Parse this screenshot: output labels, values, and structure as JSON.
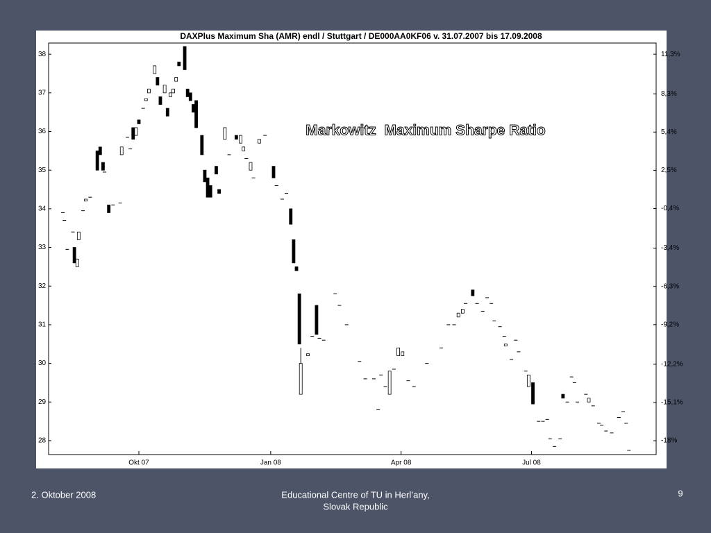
{
  "chart_data": {
    "type": "candlestick",
    "title": "DAXPlus Maximum Sha (AMR) endl / Stuttgart / DE000AA0KF06 v. 31.07.2007 bis 17.09.2008",
    "annotation": "Markowitz  Maximum Sharpe Ratio",
    "up_color": "#ffffff",
    "down_color": "#000000",
    "xlim": [
      -1,
      423
    ],
    "xticks": [
      {
        "value": 62,
        "label": "Okt 07"
      },
      {
        "value": 154,
        "label": "Jan 08"
      },
      {
        "value": 245,
        "label": "Apr 08"
      },
      {
        "value": 336,
        "label": "Jul 08"
      }
    ],
    "ylim": [
      27.64,
      38.29
    ],
    "yticks": [
      28,
      29,
      30,
      31,
      32,
      33,
      34,
      35,
      36,
      37,
      38
    ],
    "y2lim": [
      -19.05,
      12.15
    ],
    "y2ticks": [
      {
        "value": -18,
        "label": "-18%"
      },
      {
        "value": -15.1,
        "label": "-15,1%"
      },
      {
        "value": -12.2,
        "label": "-12,2%"
      },
      {
        "value": -9.2,
        "label": "-9,2%"
      },
      {
        "value": -6.3,
        "label": "-6,3%"
      },
      {
        "value": -3.4,
        "label": "-3,4%"
      },
      {
        "value": -0.4,
        "label": "-0,4%"
      },
      {
        "value": 2.5,
        "label": "2,5%"
      },
      {
        "value": 5.4,
        "label": "5,4%"
      },
      {
        "value": 8.3,
        "label": "8,3%"
      },
      {
        "value": 11.3,
        "label": "11,3%"
      }
    ],
    "x": [
      9,
      10,
      12,
      16,
      17,
      19,
      20,
      23,
      25,
      28,
      33,
      35,
      37,
      38,
      41,
      44,
      49,
      50,
      54,
      56,
      58,
      60,
      62,
      65,
      67,
      69,
      73,
      75,
      77,
      80,
      82,
      84,
      86,
      88,
      90,
      94,
      96,
      98,
      100,
      102,
      106,
      108,
      110,
      112,
      116,
      118,
      122,
      125,
      130,
      133,
      135,
      137,
      140,
      142,
      146,
      150,
      156,
      158,
      162,
      165,
      168,
      170,
      172,
      174,
      175,
      180,
      183,
      186,
      188,
      191,
      199,
      202,
      207,
      216,
      220,
      226,
      229,
      231,
      234,
      237,
      240,
      243,
      246,
      250,
      254,
      263,
      273,
      278,
      282,
      285,
      288,
      290,
      295,
      298,
      302,
      305,
      308,
      310,
      314,
      317,
      318,
      322,
      325,
      327,
      332,
      334,
      337,
      341,
      344,
      347,
      349,
      352,
      356,
      358,
      361,
      364,
      366,
      368,
      374,
      376,
      379,
      383,
      385,
      388,
      392,
      397,
      400,
      402,
      404
    ],
    "ohlc": [
      [
        33.9,
        33.9,
        33.9,
        33.9
      ],
      [
        33.7,
        33.7,
        33.7,
        33.7
      ],
      [
        32.95,
        32.95,
        32.95,
        32.95
      ],
      [
        33.4,
        33.4,
        33.4,
        33.4
      ],
      [
        33.0,
        33.0,
        32.6,
        32.6
      ],
      [
        32.5,
        32.7,
        32.5,
        32.7
      ],
      [
        33.2,
        33.4,
        33.2,
        33.4
      ],
      [
        33.95,
        33.95,
        33.95,
        33.95
      ],
      [
        34.2,
        34.25,
        34.2,
        34.25
      ],
      [
        34.3,
        34.3,
        34.3,
        34.3
      ],
      [
        35.5,
        35.5,
        35.0,
        35.0
      ],
      [
        35.6,
        35.6,
        35.4,
        35.4
      ],
      [
        35.2,
        35.2,
        35.0,
        35.0
      ],
      [
        34.95,
        34.95,
        34.95,
        34.95
      ],
      [
        34.1,
        34.1,
        33.9,
        33.9
      ],
      [
        34.1,
        34.1,
        34.1,
        34.1
      ],
      [
        34.15,
        34.15,
        34.15,
        34.15
      ],
      [
        35.4,
        35.6,
        35.4,
        35.6
      ],
      [
        35.85,
        35.85,
        35.85,
        35.85
      ],
      [
        35.55,
        35.55,
        35.55,
        35.55
      ],
      [
        36.1,
        36.1,
        35.8,
        35.8
      ],
      [
        35.9,
        36.1,
        35.9,
        36.1
      ],
      [
        36.3,
        36.3,
        36.2,
        36.2
      ],
      [
        36.6,
        36.6,
        36.6,
        36.6
      ],
      [
        36.8,
        36.85,
        36.8,
        36.85
      ],
      [
        37.0,
        37.1,
        37.0,
        37.1
      ],
      [
        37.5,
        37.7,
        37.5,
        37.7
      ],
      [
        37.4,
        37.4,
        37.2,
        37.2
      ],
      [
        36.9,
        36.9,
        36.7,
        36.7
      ],
      [
        37.0,
        37.2,
        37.0,
        37.2
      ],
      [
        36.6,
        36.6,
        36.4,
        36.4
      ],
      [
        36.9,
        37.0,
        36.9,
        37.0
      ],
      [
        37.0,
        37.1,
        37.0,
        37.1
      ],
      [
        37.3,
        37.4,
        37.3,
        37.4
      ],
      [
        37.8,
        37.8,
        37.7,
        37.7
      ],
      [
        38.2,
        38.2,
        37.6,
        37.6
      ],
      [
        37.1,
        37.1,
        36.9,
        36.9
      ],
      [
        37.0,
        37.0,
        36.8,
        36.8
      ],
      [
        36.7,
        36.7,
        36.5,
        36.5
      ],
      [
        36.8,
        36.8,
        36.1,
        36.1
      ],
      [
        35.9,
        35.9,
        35.4,
        35.4
      ],
      [
        35.0,
        35.0,
        34.7,
        34.7
      ],
      [
        34.8,
        34.8,
        34.3,
        34.3
      ],
      [
        34.6,
        34.6,
        34.3,
        34.3
      ],
      [
        35.1,
        35.1,
        34.9,
        34.9
      ],
      [
        34.5,
        34.5,
        34.4,
        34.4
      ],
      [
        35.8,
        36.1,
        35.8,
        36.1
      ],
      [
        35.4,
        35.4,
        35.4,
        35.4
      ],
      [
        35.9,
        35.9,
        35.8,
        35.8
      ],
      [
        35.7,
        35.9,
        35.7,
        35.9
      ],
      [
        35.5,
        35.6,
        35.5,
        35.6
      ],
      [
        35.3,
        35.3,
        35.3,
        35.3
      ],
      [
        35.0,
        35.2,
        35.0,
        35.2
      ],
      [
        34.8,
        34.8,
        34.8,
        34.8
      ],
      [
        35.7,
        35.8,
        35.7,
        35.8
      ],
      [
        35.9,
        35.9,
        35.9,
        35.9
      ],
      [
        35.1,
        35.1,
        34.8,
        34.8
      ],
      [
        34.6,
        34.6,
        34.6,
        34.6
      ],
      [
        34.25,
        34.25,
        34.25,
        34.25
      ],
      [
        34.4,
        34.4,
        34.4,
        34.4
      ],
      [
        34.0,
        34.0,
        33.6,
        33.6
      ],
      [
        33.2,
        33.2,
        32.6,
        32.6
      ],
      [
        32.5,
        32.5,
        32.4,
        32.4
      ],
      [
        31.8,
        31.8,
        30.5,
        30.5
      ],
      [
        29.2,
        30.4,
        29.2,
        30.0
      ],
      [
        30.2,
        30.25,
        30.2,
        30.25
      ],
      [
        30.7,
        30.7,
        30.7,
        30.7
      ],
      [
        31.5,
        31.5,
        30.75,
        30.75
      ],
      [
        30.65,
        30.65,
        30.65,
        30.65
      ],
      [
        30.6,
        30.6,
        30.6,
        30.6
      ],
      [
        31.8,
        31.8,
        31.8,
        31.8
      ],
      [
        31.5,
        31.5,
        31.5,
        31.5
      ],
      [
        31.0,
        31.0,
        31.0,
        31.0
      ],
      [
        30.05,
        30.05,
        30.05,
        30.05
      ],
      [
        29.6,
        29.6,
        29.6,
        29.6
      ],
      [
        29.6,
        29.6,
        29.6,
        29.6
      ],
      [
        28.8,
        28.8,
        28.8,
        28.8
      ],
      [
        29.7,
        29.7,
        29.7,
        29.7
      ],
      [
        29.4,
        29.4,
        29.4,
        29.4
      ],
      [
        29.2,
        29.8,
        29.2,
        29.8
      ],
      [
        29.85,
        29.85,
        29.85,
        29.85
      ],
      [
        30.2,
        30.4,
        30.2,
        30.4
      ],
      [
        30.2,
        30.3,
        30.2,
        30.3
      ],
      [
        29.55,
        29.55,
        29.55,
        29.55
      ],
      [
        29.4,
        29.4,
        29.4,
        29.4
      ],
      [
        30.0,
        30.0,
        30.0,
        30.0
      ],
      [
        30.4,
        30.4,
        30.4,
        30.4
      ],
      [
        31.0,
        31.0,
        31.0,
        31.0
      ],
      [
        31.0,
        31.0,
        31.0,
        31.0
      ],
      [
        31.2,
        31.3,
        31.2,
        31.3
      ],
      [
        31.3,
        31.4,
        31.3,
        31.4
      ],
      [
        31.55,
        31.55,
        31.55,
        31.55
      ],
      [
        31.9,
        31.9,
        31.75,
        31.75
      ],
      [
        31.55,
        31.55,
        31.55,
        31.55
      ],
      [
        31.35,
        31.35,
        31.35,
        31.35
      ],
      [
        31.7,
        31.7,
        31.7,
        31.7
      ],
      [
        31.55,
        31.55,
        31.55,
        31.55
      ],
      [
        31.1,
        31.1,
        31.1,
        31.1
      ],
      [
        30.95,
        30.95,
        30.95,
        30.95
      ],
      [
        30.7,
        30.7,
        30.7,
        30.7
      ],
      [
        30.45,
        30.5,
        30.45,
        30.5
      ],
      [
        30.1,
        30.1,
        30.1,
        30.1
      ],
      [
        30.6,
        30.6,
        30.6,
        30.6
      ],
      [
        30.3,
        30.3,
        30.3,
        30.3
      ],
      [
        29.8,
        29.8,
        29.8,
        29.8
      ],
      [
        29.4,
        29.7,
        29.4,
        29.7
      ],
      [
        29.5,
        29.5,
        28.95,
        28.95
      ],
      [
        28.5,
        28.5,
        28.5,
        28.5
      ],
      [
        28.5,
        28.5,
        28.5,
        28.5
      ],
      [
        28.55,
        28.55,
        28.55,
        28.55
      ],
      [
        28.05,
        28.05,
        28.05,
        28.05
      ],
      [
        27.85,
        27.85,
        27.85,
        27.85
      ],
      [
        28.05,
        28.05,
        28.05,
        28.05
      ],
      [
        29.2,
        29.2,
        29.1,
        29.1
      ],
      [
        29.0,
        29.0,
        29.0,
        29.0
      ],
      [
        29.65,
        29.65,
        29.65,
        29.65
      ],
      [
        29.5,
        29.5,
        29.5,
        29.5
      ],
      [
        29.0,
        29.0,
        29.0,
        29.0
      ],
      [
        29.2,
        29.2,
        29.2,
        29.2
      ],
      [
        29.0,
        29.1,
        29.0,
        29.1
      ],
      [
        28.9,
        28.9,
        28.9,
        28.9
      ],
      [
        28.45,
        28.45,
        28.45,
        28.45
      ],
      [
        28.4,
        28.4,
        28.4,
        28.4
      ],
      [
        28.25,
        28.25,
        28.25,
        28.25
      ],
      [
        28.2,
        28.2,
        28.2,
        28.2
      ],
      [
        28.6,
        28.6,
        28.6,
        28.6
      ],
      [
        28.75,
        28.75,
        28.75,
        28.75
      ],
      [
        28.45,
        28.45,
        28.45,
        28.45
      ],
      [
        27.75,
        27.75,
        27.75,
        27.75
      ]
    ]
  },
  "footer": {
    "date": "2. Oktober 2008",
    "institution": [
      "Educational Centre of TU in Herl’any,",
      "Slovak Republic"
    ],
    "page": "9"
  }
}
